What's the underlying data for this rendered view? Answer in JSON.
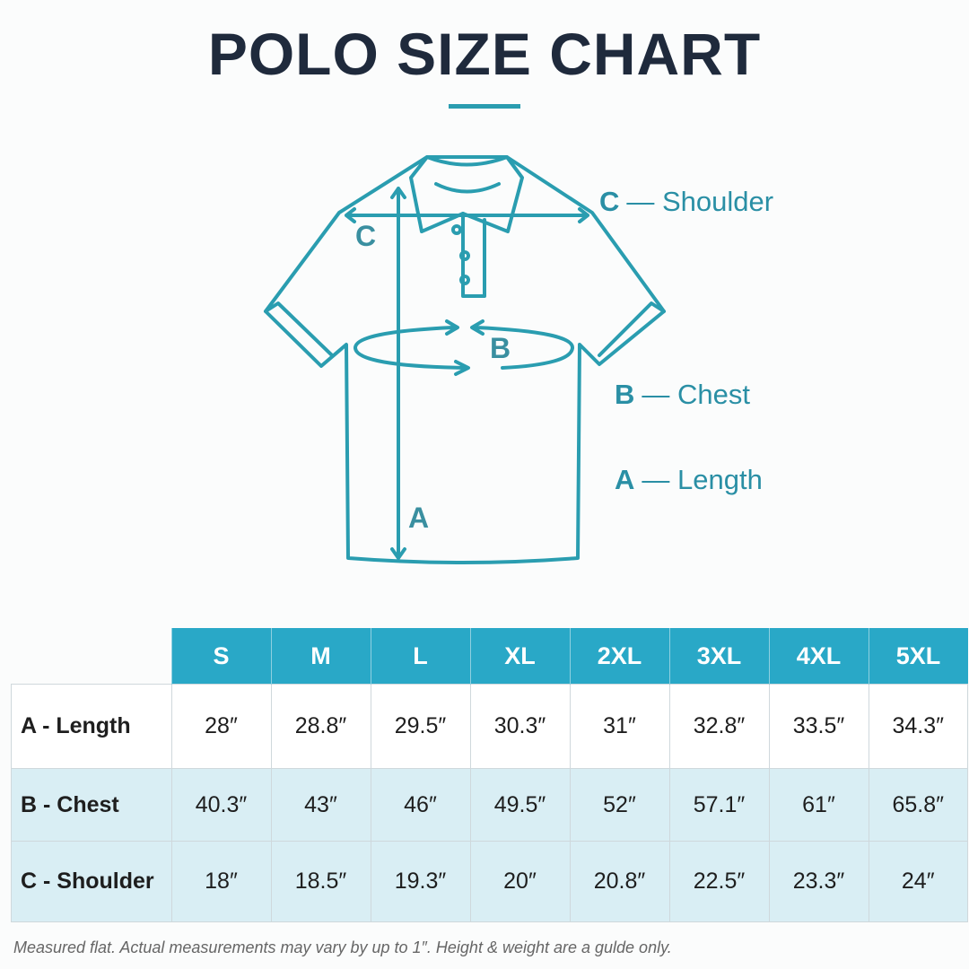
{
  "header": {
    "title": "POLO SIZE CHART"
  },
  "diagram": {
    "markers": [
      "C",
      "B",
      "A"
    ],
    "legend": [
      {
        "letter": "C",
        "text": "— Shoulder"
      },
      {
        "letter": "B",
        "text": "— Chest"
      },
      {
        "letter": "A",
        "text": "— Length"
      }
    ]
  },
  "table": {
    "columns": [
      "S",
      "M",
      "L",
      "XL",
      "2XL",
      "3XL",
      "4XL",
      "5XL"
    ],
    "rows": [
      [
        "A - Length",
        "28″",
        "28.8″",
        "29.5″",
        "30.3″",
        "31″",
        "32.8″",
        "33.5″",
        "34.3″"
      ],
      [
        "B - Chest",
        "40.3″",
        "43″",
        "46″",
        "49.5″",
        "52″",
        "57.1″",
        "61″",
        "65.8″"
      ],
      [
        "C - Shoulder",
        "18″",
        "18.5″",
        "19.3″",
        "20″",
        "20.8″",
        "22.5″",
        "23.3″",
        "24″"
      ]
    ]
  },
  "footnote": "Measured flat. Actual measurements may vary by up to 1″. Height & weight are a gulde only."
}
